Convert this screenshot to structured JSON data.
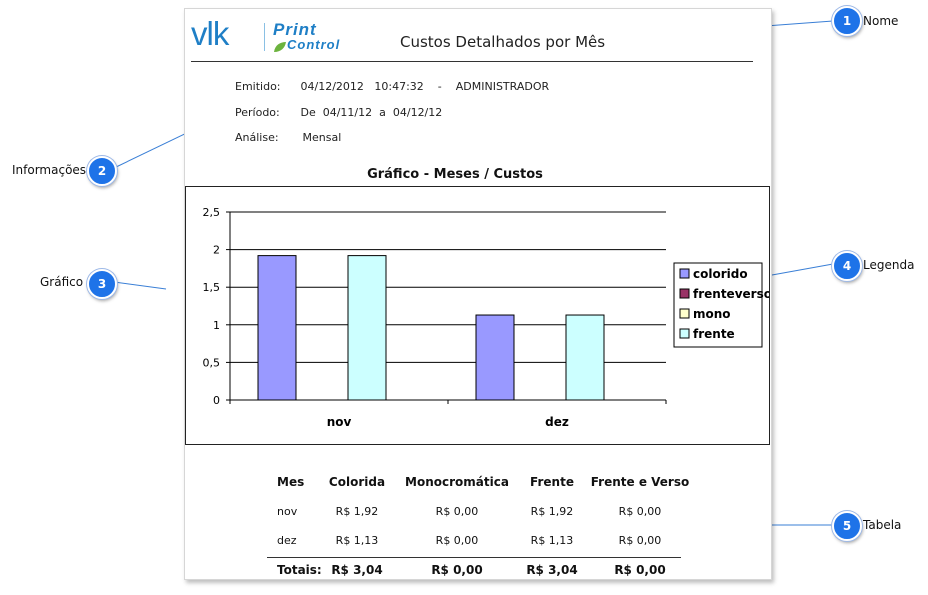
{
  "logo": {
    "brand": "vlk",
    "product_line1": "Print",
    "product_line2": "Control"
  },
  "report": {
    "title": "Custos Detalhados por Mês"
  },
  "info": {
    "emitido_label": "Emitido:",
    "emitido_value": "04/12/2012   10:47:32    -    ADMINISTRADOR",
    "periodo_label": "Período:",
    "periodo_value": "De  04/11/12  a  04/12/12",
    "analise_label": "Análise:",
    "analise_value": "Mensal"
  },
  "chart_data": {
    "type": "bar",
    "title": "Gráfico - Meses / Custos",
    "categories": [
      "nov",
      "dez"
    ],
    "series": [
      {
        "name": "colorido",
        "values": [
          1.92,
          1.13
        ],
        "color": "#9999ff"
      },
      {
        "name": "frenteverso",
        "values": [
          0,
          0
        ],
        "color": "#993366"
      },
      {
        "name": "mono",
        "values": [
          0,
          0
        ],
        "color": "#ffffcc"
      },
      {
        "name": "frente",
        "values": [
          1.92,
          1.13
        ],
        "color": "#ccffff"
      }
    ],
    "yticks": [
      "0",
      "0,5",
      "1",
      "1,5",
      "2",
      "2,5"
    ],
    "ylim": [
      0,
      2.5
    ],
    "grid": true,
    "legend_position": "right"
  },
  "table": {
    "headers": [
      "Mes",
      "Colorida",
      "Monocromática",
      "Frente",
      "Frente e Verso"
    ],
    "rows": [
      [
        "nov",
        "R$ 1,92",
        "R$ 0,00",
        "R$ 1,92",
        "R$ 0,00"
      ],
      [
        "dez",
        "R$ 1,13",
        "R$ 0,00",
        "R$ 1,13",
        "R$ 0,00"
      ]
    ],
    "totals": [
      "Totais:",
      "R$ 3,04",
      "R$ 0,00",
      "R$ 3,04",
      "R$ 0,00"
    ]
  },
  "callouts": [
    {
      "number": "1",
      "label": "Nome"
    },
    {
      "number": "2",
      "label": "Informações"
    },
    {
      "number": "3",
      "label": "Gráfico"
    },
    {
      "number": "4",
      "label": "Legenda"
    },
    {
      "number": "5",
      "label": "Tabela"
    }
  ],
  "colors": {
    "accent": "#1e73e8",
    "brand": "#1f7fc6"
  }
}
